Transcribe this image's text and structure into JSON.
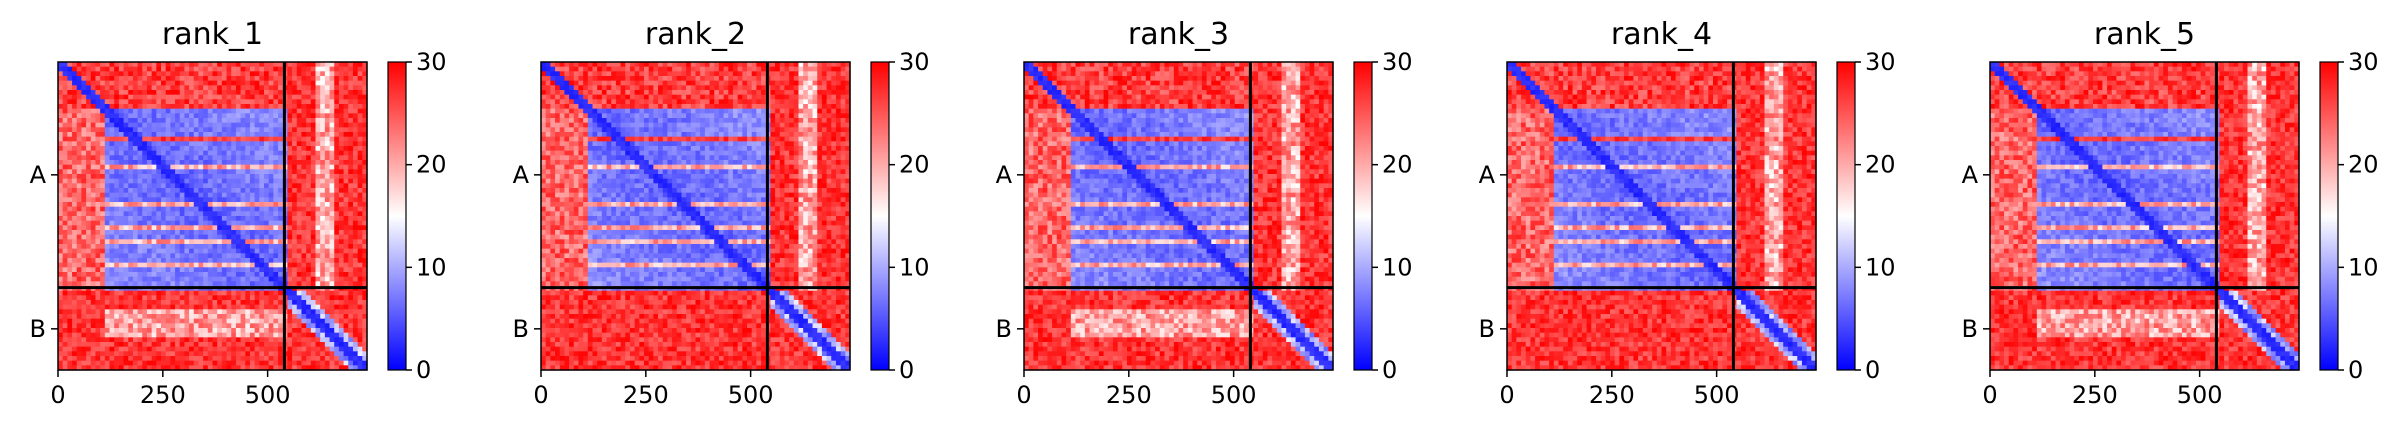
{
  "chart_data": [
    {
      "type": "heatmap",
      "title": "rank_1",
      "x_ticks": [
        "0",
        "250",
        "500"
      ],
      "y_ticks": [
        "A",
        "B"
      ],
      "colorbar_ticks": [
        "0",
        "10",
        "20",
        "30"
      ],
      "value_range": [
        0,
        30
      ],
      "colormap": [
        "#0000ff",
        "#ffffff",
        "#ff0000"
      ],
      "chain_boundary": 540,
      "length": 737
    },
    {
      "type": "heatmap",
      "title": "rank_2",
      "x_ticks": [
        "0",
        "250",
        "500"
      ],
      "y_ticks": [
        "A",
        "B"
      ],
      "colorbar_ticks": [
        "0",
        "10",
        "20",
        "30"
      ],
      "value_range": [
        0,
        30
      ],
      "colormap": [
        "#0000ff",
        "#ffffff",
        "#ff0000"
      ],
      "chain_boundary": 540,
      "length": 737
    },
    {
      "type": "heatmap",
      "title": "rank_3",
      "x_ticks": [
        "0",
        "250",
        "500"
      ],
      "y_ticks": [
        "A",
        "B"
      ],
      "colorbar_ticks": [
        "0",
        "10",
        "20",
        "30"
      ],
      "value_range": [
        0,
        30
      ],
      "colormap": [
        "#0000ff",
        "#ffffff",
        "#ff0000"
      ],
      "chain_boundary": 540,
      "length": 737
    },
    {
      "type": "heatmap",
      "title": "rank_4",
      "x_ticks": [
        "0",
        "250",
        "500"
      ],
      "y_ticks": [
        "A",
        "B"
      ],
      "colorbar_ticks": [
        "0",
        "10",
        "20",
        "30"
      ],
      "value_range": [
        0,
        30
      ],
      "colormap": [
        "#0000ff",
        "#ffffff",
        "#ff0000"
      ],
      "chain_boundary": 540,
      "length": 737
    },
    {
      "type": "heatmap",
      "title": "rank_5",
      "x_ticks": [
        "0",
        "250",
        "500"
      ],
      "y_ticks": [
        "A",
        "B"
      ],
      "colorbar_ticks": [
        "0",
        "10",
        "20",
        "30"
      ],
      "value_range": [
        0,
        30
      ],
      "colormap": [
        "#0000ff",
        "#ffffff",
        "#ff0000"
      ],
      "chain_boundary": 540,
      "length": 737
    }
  ]
}
